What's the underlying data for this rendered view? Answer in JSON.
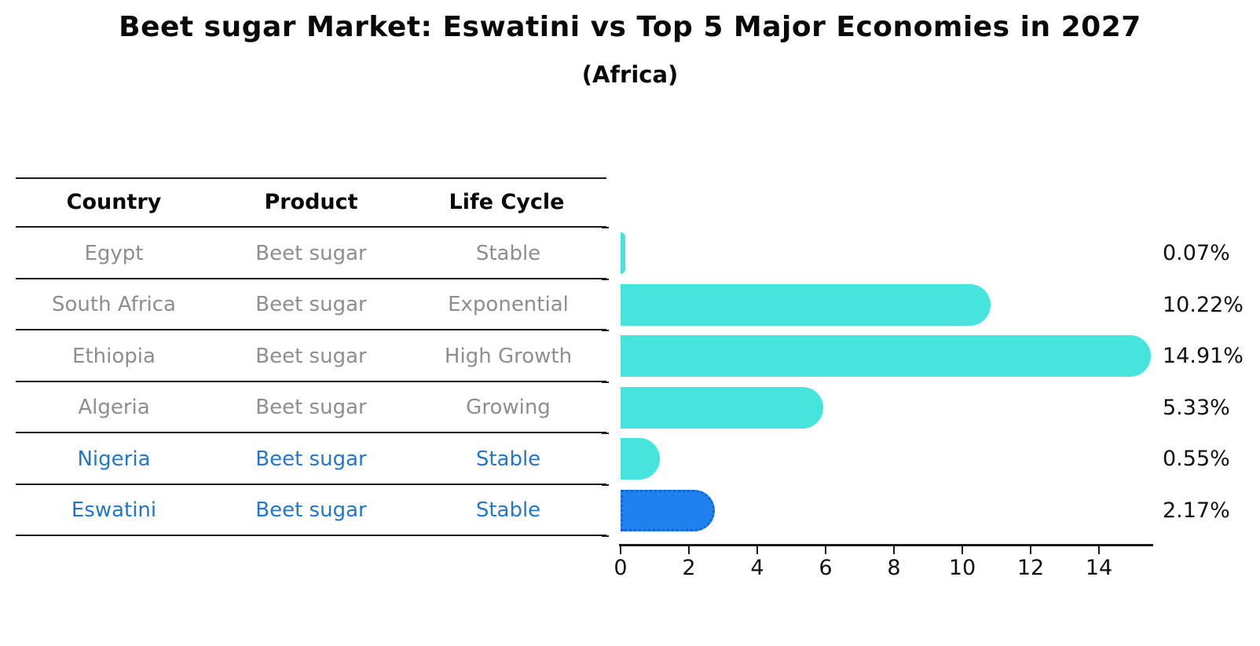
{
  "title": "Beet sugar Market: Eswatini vs Top 5 Major Economies in 2027",
  "subtitle": "(Africa)",
  "table": {
    "columns": [
      "Country",
      "Product",
      "Life Cycle"
    ],
    "rows": [
      {
        "country": "Egypt",
        "product": "Beet sugar",
        "life_cycle": "Stable",
        "highlight": false
      },
      {
        "country": "South Africa",
        "product": "Beet sugar",
        "life_cycle": "Exponential",
        "highlight": false
      },
      {
        "country": "Ethiopia",
        "product": "Beet sugar",
        "life_cycle": "High Growth",
        "highlight": false
      },
      {
        "country": "Algeria",
        "product": "Beet sugar",
        "life_cycle": "Growing",
        "highlight": false
      },
      {
        "country": "Nigeria",
        "product": "Beet sugar",
        "life_cycle": "Stable",
        "highlight": true,
        "highlight_note": null
      },
      {
        "country": "Eswatini",
        "product": "Beet sugar",
        "life_cycle": "Stable",
        "highlight": true
      }
    ]
  },
  "chart_data": {
    "type": "bar",
    "orientation": "horizontal",
    "title": "Beet sugar Market: Eswatini vs Top 5 Major Economies in 2027",
    "subtitle": "(Africa)",
    "categories": [
      "Egypt",
      "South Africa",
      "Ethiopia",
      "Algeria",
      "Nigeria",
      "Eswatini"
    ],
    "values": [
      0.07,
      10.22,
      14.91,
      5.33,
      0.55,
      2.17
    ],
    "value_labels": [
      "0.07%",
      "10.22%",
      "14.91%",
      "5.33%",
      "0.55%",
      "2.17%"
    ],
    "xlabel": "",
    "ylabel": "",
    "xlim": [
      0,
      15.6
    ],
    "x_ticks": [
      0,
      2,
      4,
      6,
      8,
      10,
      12,
      14
    ],
    "grid": false,
    "legend": null,
    "highlight_category": "Eswatini"
  },
  "colors": {
    "bar_default": "#47e3dd",
    "bar_highlight": "#1e81ee",
    "bar_highlight_border": "#1565d8",
    "highlight_text": "#2277cc",
    "table_text": "#8e8e8e",
    "heading_text": "#0a0a0a",
    "axis": "#1a1a1a"
  }
}
